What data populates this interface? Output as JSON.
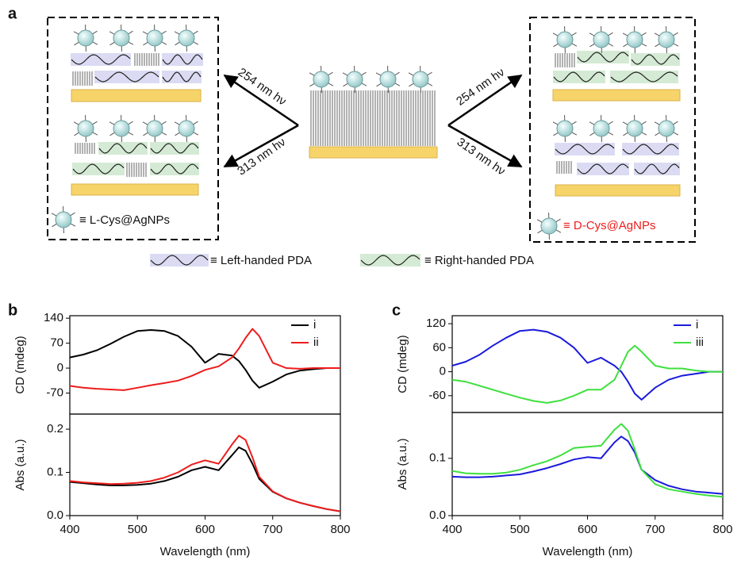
{
  "labels": {
    "a": "a",
    "b": "b",
    "c": "c"
  },
  "schematic": {
    "arrow_left_up": "254 nm hν",
    "arrow_left_down": "313 nm hν",
    "arrow_right_up": "254 nm hν",
    "arrow_right_down": "313 nm hν",
    "left_legend": "≡ L-Cys@AgNPs",
    "right_legend": "≡ D-Cys@AgNPs",
    "left_handed": "≡ Left-handed PDA",
    "right_handed": "≡ Right-handed PDA"
  },
  "chart_data": [
    {
      "type": "line",
      "ylabel": "CD (mdeg)",
      "xlim": [
        400,
        800
      ],
      "ylim": [
        -129,
        147
      ],
      "yticks": [
        -70,
        0,
        70,
        140
      ],
      "legend": "upper right",
      "x": [
        400,
        420,
        440,
        460,
        480,
        500,
        520,
        540,
        560,
        580,
        600,
        620,
        640,
        650,
        660,
        670,
        680,
        700,
        720,
        740,
        760,
        780,
        800
      ],
      "series": [
        {
          "name": "i",
          "color": "#000000",
          "values": [
            30,
            38,
            50,
            68,
            88,
            104,
            107,
            104,
            90,
            60,
            15,
            40,
            35,
            20,
            -5,
            -35,
            -55,
            -38,
            -18,
            -7,
            -3,
            0,
            0
          ]
        },
        {
          "name": "ii",
          "color": "#ee1c1c",
          "values": [
            -50,
            -55,
            -58,
            -60,
            -62,
            -55,
            -48,
            -42,
            -35,
            -22,
            -5,
            5,
            30,
            55,
            85,
            110,
            90,
            15,
            0,
            -2,
            0,
            0,
            0
          ]
        }
      ]
    },
    {
      "type": "line",
      "ylabel": "Abs (a.u.)",
      "xlabel": "Wavelength (nm)",
      "xlim": [
        400,
        800
      ],
      "ylim": [
        0,
        0.235
      ],
      "yticks": [
        {
          "value": 0,
          "label": "0.0"
        },
        0.1,
        0.2
      ],
      "xticks": [
        400,
        500,
        600,
        700,
        800
      ],
      "x": [
        400,
        420,
        440,
        460,
        480,
        500,
        520,
        540,
        560,
        580,
        600,
        620,
        640,
        650,
        660,
        670,
        680,
        700,
        720,
        740,
        760,
        780,
        800
      ],
      "series": [
        {
          "color": "#000000",
          "values": [
            0.078,
            0.075,
            0.072,
            0.07,
            0.07,
            0.071,
            0.074,
            0.08,
            0.09,
            0.105,
            0.113,
            0.105,
            0.14,
            0.158,
            0.15,
            0.12,
            0.085,
            0.055,
            0.04,
            0.03,
            0.022,
            0.015,
            0.01
          ]
        },
        {
          "color": "#ee1c1c",
          "values": [
            0.08,
            0.077,
            0.075,
            0.073,
            0.074,
            0.076,
            0.08,
            0.088,
            0.1,
            0.118,
            0.128,
            0.12,
            0.165,
            0.185,
            0.175,
            0.135,
            0.09,
            0.056,
            0.04,
            0.03,
            0.022,
            0.015,
            0.01
          ]
        }
      ]
    },
    {
      "type": "line",
      "ylabel": "CD (mdeg)",
      "xlim": [
        400,
        800
      ],
      "ylim": [
        -102,
        140
      ],
      "yticks": [
        -60,
        0,
        60,
        120
      ],
      "legend": "upper right",
      "x": [
        400,
        420,
        440,
        460,
        480,
        500,
        520,
        540,
        560,
        580,
        600,
        620,
        640,
        650,
        660,
        670,
        680,
        700,
        720,
        740,
        760,
        780,
        800
      ],
      "series": [
        {
          "name": "i",
          "color": "#1a1adc",
          "values": [
            15,
            25,
            42,
            65,
            85,
            102,
            105,
            100,
            85,
            60,
            22,
            35,
            15,
            0,
            -25,
            -55,
            -70,
            -40,
            -20,
            -10,
            -5,
            0,
            0
          ]
        },
        {
          "name": "iii",
          "color": "#3ee03e",
          "values": [
            -20,
            -25,
            -35,
            -45,
            -55,
            -65,
            -73,
            -78,
            -72,
            -60,
            -45,
            -45,
            -20,
            15,
            50,
            65,
            50,
            15,
            8,
            8,
            3,
            0,
            0
          ]
        }
      ]
    },
    {
      "type": "line",
      "ylabel": "Abs (a.u.)",
      "xlabel": "Wavelength (nm)",
      "xlim": [
        400,
        800
      ],
      "ylim": [
        0,
        0.18
      ],
      "yticks": [
        {
          "value": 0,
          "label": "0.0"
        },
        0.1
      ],
      "xticks": [
        400,
        500,
        600,
        700,
        800
      ],
      "x": [
        400,
        420,
        440,
        460,
        480,
        500,
        520,
        540,
        560,
        580,
        600,
        620,
        640,
        650,
        660,
        670,
        680,
        700,
        720,
        740,
        760,
        780,
        800
      ],
      "series": [
        {
          "color": "#1a1adc",
          "values": [
            0.068,
            0.067,
            0.067,
            0.068,
            0.07,
            0.072,
            0.077,
            0.083,
            0.09,
            0.098,
            0.102,
            0.1,
            0.128,
            0.138,
            0.13,
            0.11,
            0.08,
            0.062,
            0.052,
            0.046,
            0.042,
            0.04,
            0.038
          ]
        },
        {
          "color": "#3ee03e",
          "values": [
            0.078,
            0.074,
            0.073,
            0.073,
            0.075,
            0.08,
            0.088,
            0.095,
            0.105,
            0.118,
            0.12,
            0.122,
            0.15,
            0.16,
            0.148,
            0.115,
            0.08,
            0.055,
            0.046,
            0.042,
            0.038,
            0.035,
            0.033
          ]
        }
      ]
    }
  ]
}
